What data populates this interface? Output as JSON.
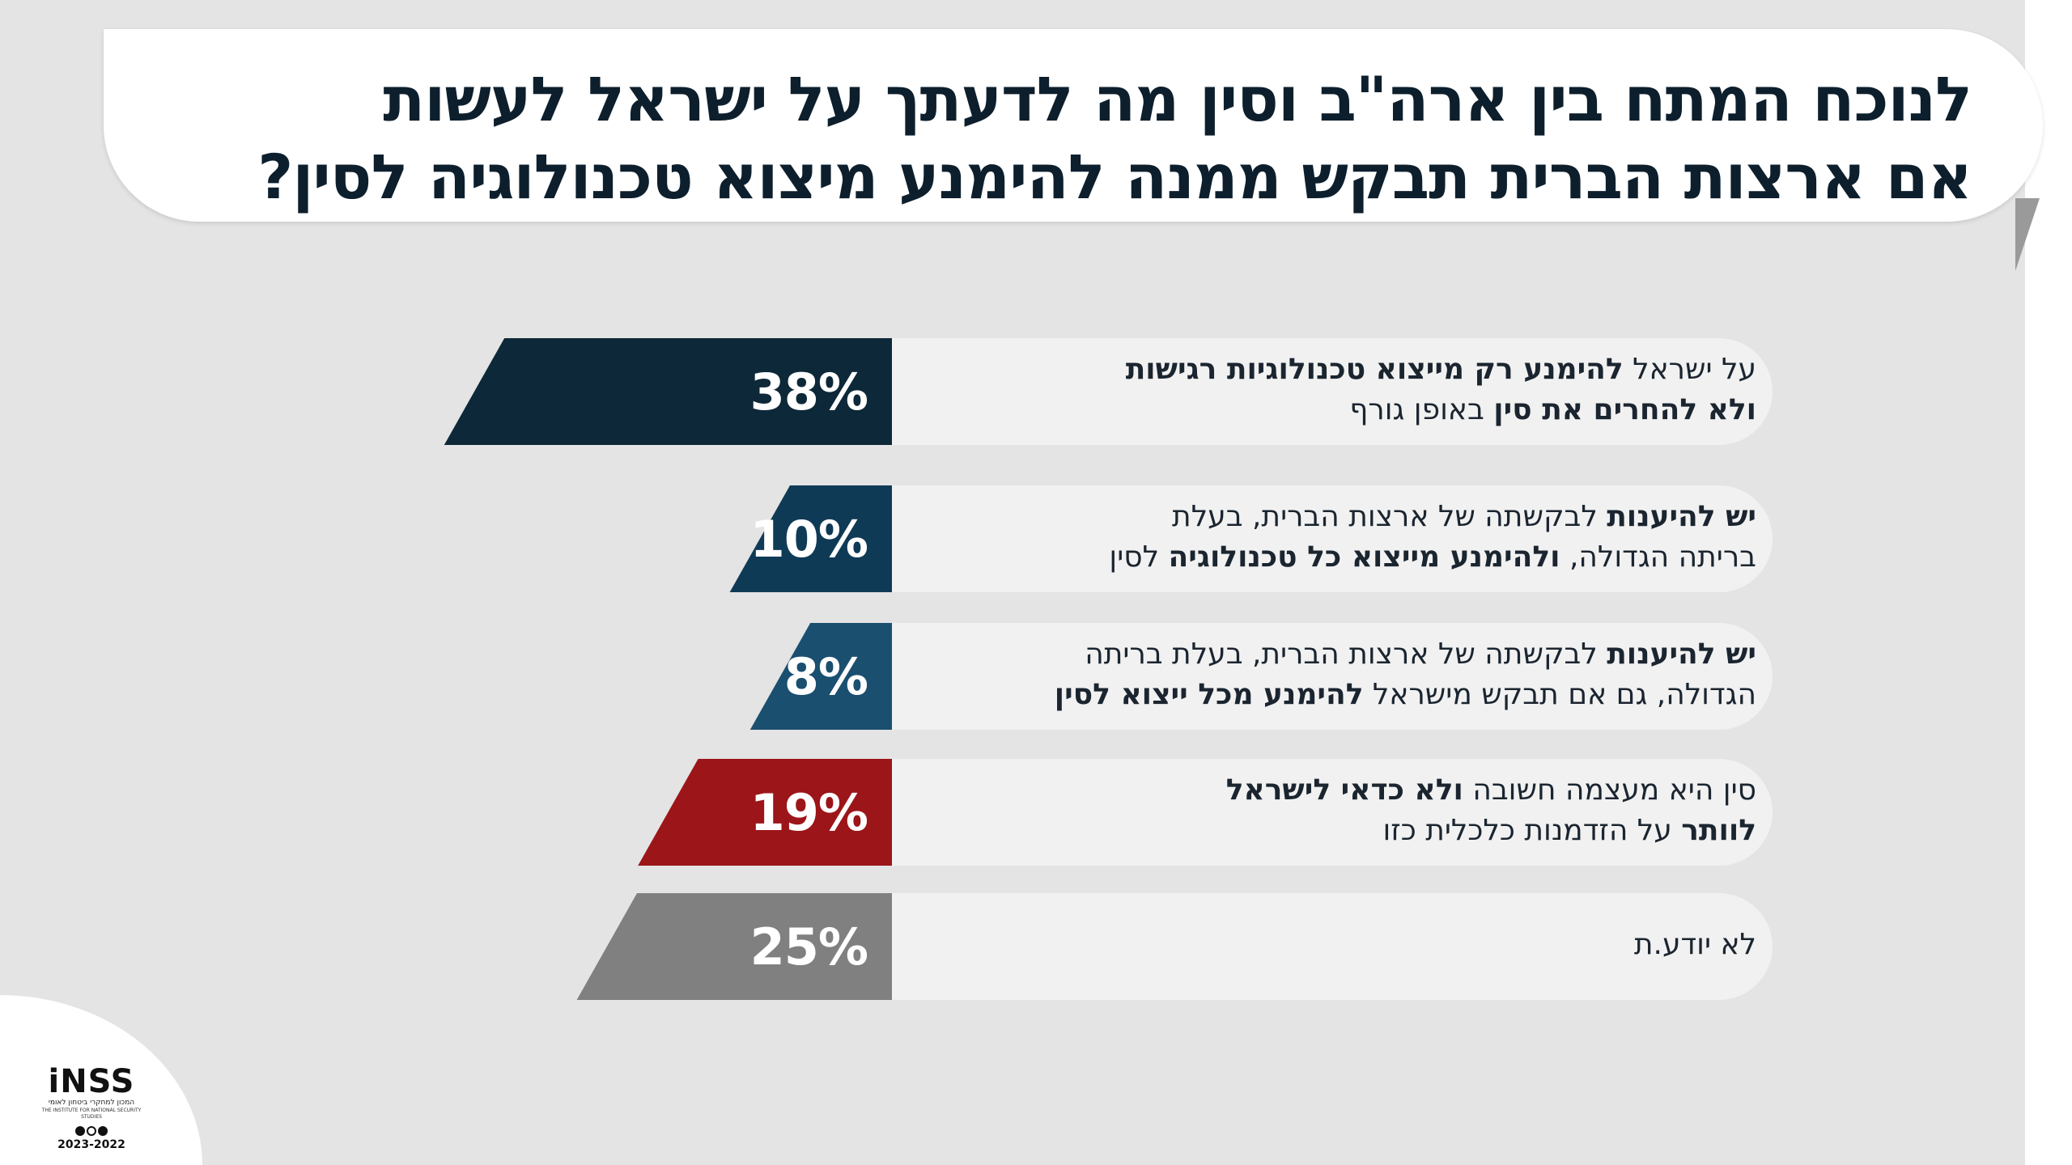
{
  "header": {
    "title_line_1": "לנוכח המתח בין ארה\"ב וסין מה לדעתך על ישראל לעשות",
    "title_line_2": "אם ארצות הברית תבקש ממנה להימנע מיצוא טכנולוגיה לסין?"
  },
  "chart_data": {
    "type": "bar",
    "orientation": "horizontal",
    "unit": "%",
    "xlim": [
      0,
      100
    ],
    "grid": false,
    "legend": "none",
    "bars": [
      {
        "value": 38,
        "value_label": "38%",
        "color": "#0d2838",
        "label_segments": [
          [
            {
              "t": "על ישראל ",
              "b": false
            },
            {
              "t": "להימנע רק מייצוא טכנולוגיות רגישות",
              "b": true
            }
          ],
          [
            {
              "t": "ולא להחרים את סין",
              "b": true
            },
            {
              "t": " באופן גורף",
              "b": false
            }
          ]
        ]
      },
      {
        "value": 10,
        "value_label": "10%",
        "color": "#0f3a56",
        "label_segments": [
          [
            {
              "t": "יש להיענות",
              "b": true
            },
            {
              "t": " לבקשתה של ארצות הברית, בעלת",
              "b": false
            }
          ],
          [
            {
              "t": "בריתה הגדולה, ",
              "b": false
            },
            {
              "t": "ולהימנע מייצוא כל טכנולוגיה",
              "b": true
            },
            {
              "t": " לסין",
              "b": false
            }
          ]
        ]
      },
      {
        "value": 8,
        "value_label": "8%",
        "color": "#1a4f70",
        "label_segments": [
          [
            {
              "t": "יש להיענות",
              "b": true
            },
            {
              "t": " לבקשתה של ארצות הברית, בעלת בריתה",
              "b": false
            }
          ],
          [
            {
              "t": "הגדולה, גם אם תבקש מישראל ",
              "b": false
            },
            {
              "t": "להימנע מכל ייצוא לסין",
              "b": true
            }
          ]
        ]
      },
      {
        "value": 19,
        "value_label": "19%",
        "color": "#9b1519",
        "label_segments": [
          [
            {
              "t": "סין היא מעצמה חשובה ",
              "b": false
            },
            {
              "t": "ולא כדאי לישראל",
              "b": true
            }
          ],
          [
            {
              "t": "לוותר",
              "b": true
            },
            {
              "t": " על הזדמנות כלכלית כזו",
              "b": false
            }
          ]
        ]
      },
      {
        "value": 25,
        "value_label": "25%",
        "color": "#808080",
        "label_segments": [
          [
            {
              "t": "לא יודע.ת",
              "b": false
            }
          ]
        ]
      }
    ]
  },
  "logo": {
    "word": "iNSS",
    "sub_he": "המכון למחקרי ביטחון לאומי",
    "sub_en": "THE INSTITUTE FOR NATIONAL SECURITY STUDIES",
    "years": "2023-2022"
  },
  "colors": {
    "background": "#e4e4e4",
    "pill": "#f1f1f1",
    "title": "#0d1f2d"
  }
}
